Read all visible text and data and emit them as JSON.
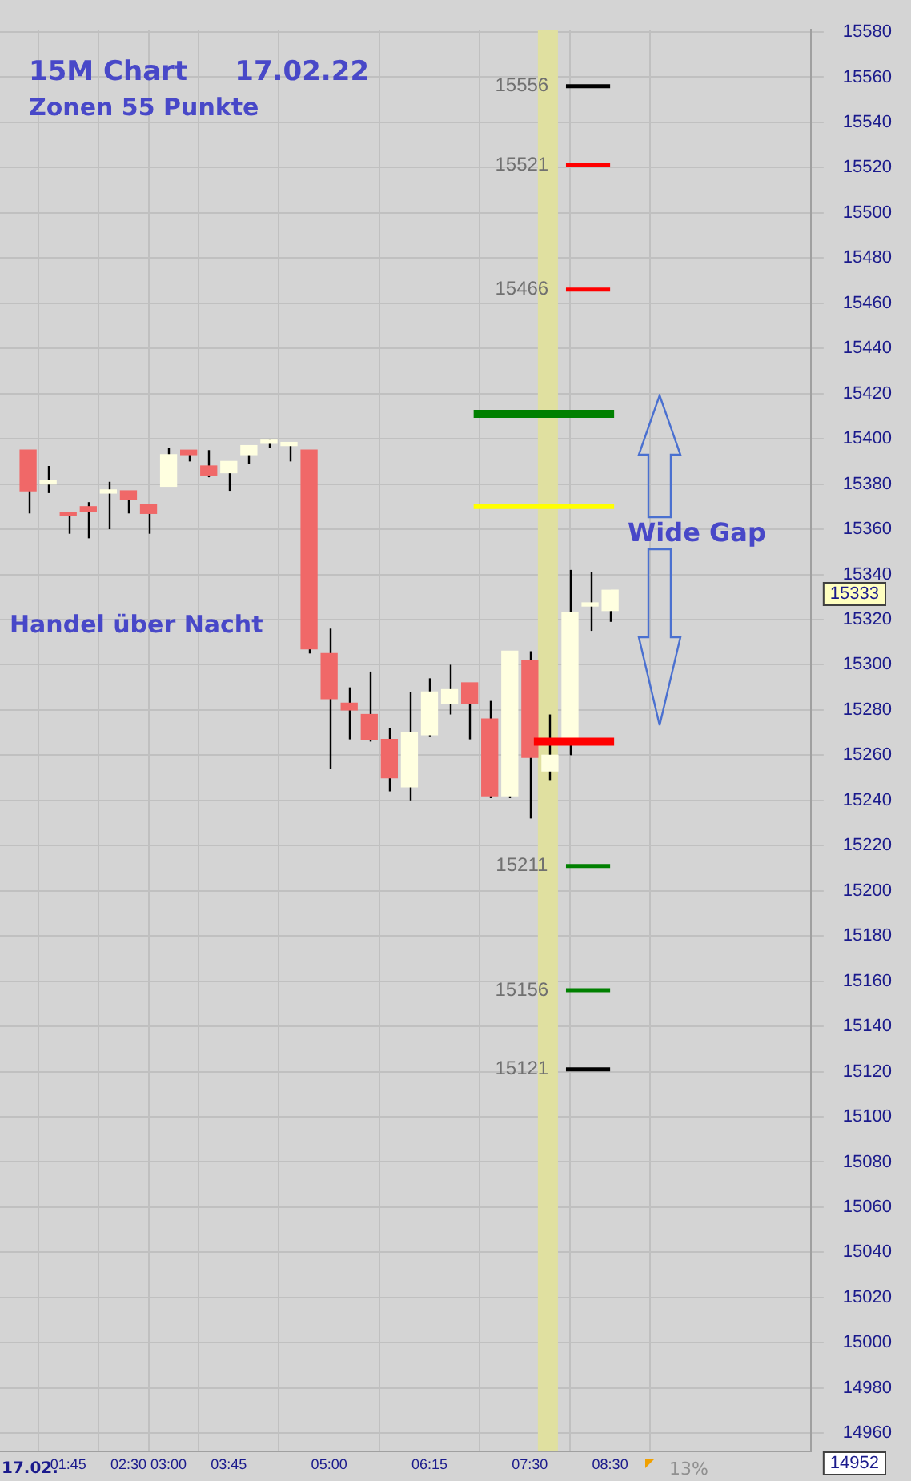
{
  "chart_data": {
    "type": "candlestick",
    "annotations": [
      "15M Chart     17.02.22",
      "Zonen 55 Punkte",
      "Handel über Nacht",
      "Wide Gap",
      "13%",
      "15333",
      "14952",
      "17.02."
    ],
    "x": [
      1.25,
      1.5,
      1.75,
      2,
      2.25,
      2.5,
      2.75,
      3,
      3.25,
      3.5,
      3.75,
      4,
      4.25,
      4.5,
      4.75,
      5,
      5.25,
      5.5,
      5.75,
      6,
      6.25,
      6.5,
      6.75,
      7,
      7.25,
      7.5,
      7.75,
      8,
      8.25,
      8.5
    ],
    "ohlc": [
      [
        15395,
        15395,
        15367,
        15377
      ],
      [
        15380,
        15388,
        15376,
        15380
      ],
      [
        15367,
        15367,
        15358,
        15366
      ],
      [
        15368,
        15372,
        15356,
        15370
      ],
      [
        15376,
        15381,
        15360,
        15376
      ],
      [
        15377,
        15377,
        15367,
        15373
      ],
      [
        15371,
        15371,
        15358,
        15367
      ],
      [
        15379,
        15396,
        15379,
        15393
      ],
      [
        15395,
        15395,
        15390,
        15393
      ],
      [
        15388,
        15395,
        15383,
        15384
      ],
      [
        15385,
        15390,
        15377,
        15390
      ],
      [
        15393,
        15397,
        15389,
        15397
      ],
      [
        15398,
        15400,
        15396,
        15398
      ],
      [
        15397,
        15397,
        15390,
        15397
      ],
      [
        15395,
        15395,
        15305,
        15307
      ],
      [
        15305,
        15316,
        15254,
        15285
      ],
      [
        15283,
        15290,
        15267,
        15280
      ],
      [
        15278,
        15297,
        15266,
        15267
      ],
      [
        15267,
        15272,
        15244,
        15250
      ],
      [
        15246,
        15288,
        15240,
        15270
      ],
      [
        15269,
        15294,
        15268,
        15288
      ],
      [
        15283,
        15300,
        15278,
        15289
      ],
      [
        15292,
        15292,
        15267,
        15283
      ],
      [
        15276,
        15284,
        15241,
        15242
      ],
      [
        15242,
        15306,
        15241,
        15306
      ],
      [
        15302,
        15306,
        15232,
        15259
      ],
      [
        15253,
        15278,
        15249,
        15260
      ],
      [
        15266,
        15342,
        15260,
        15323
      ],
      [
        15326,
        15341,
        15315,
        15326
      ],
      [
        15324,
        15333,
        15319,
        15333
      ]
    ],
    "colors": [
      "#f06868",
      "#ffffe0",
      "#f06868",
      "#f06868",
      "#ffffe0",
      "#f06868",
      "#f06868",
      "#ffffe0",
      "#f06868",
      "#f06868",
      "#ffffe0",
      "#ffffe0",
      "#ffffe0",
      "#ffffe0",
      "#f06868",
      "#f06868",
      "#f06868",
      "#f06868",
      "#f06868",
      "#ffffe0",
      "#ffffe0",
      "#ffffe0",
      "#f06868",
      "#f06868",
      "#ffffe0",
      "#f06868",
      "#ffffe0",
      "#ffffe0",
      "#ffffe0",
      "#ffffe0"
    ],
    "xlim": [
      0.9,
      11
    ],
    "xticks": [
      {
        "value": 1.75,
        "label": "01:45"
      },
      {
        "value": 2.5,
        "label": "02:30"
      },
      {
        "value": 3,
        "label": "03:00"
      },
      {
        "value": 3.75,
        "label": "03:45"
      },
      {
        "value": 5,
        "label": "05:00"
      },
      {
        "value": 6.25,
        "label": "06:15"
      },
      {
        "value": 7.5,
        "label": "07:30"
      },
      {
        "value": 8.5,
        "label": "08:30"
      }
    ],
    "ylim": [
      14952,
      15581
    ],
    "yticks": [
      14960,
      14980,
      15000,
      15020,
      15040,
      15060,
      15080,
      15100,
      15120,
      15140,
      15160,
      15180,
      15200,
      15220,
      15240,
      15260,
      15280,
      15300,
      15320,
      15340,
      15360,
      15380,
      15400,
      15420,
      15440,
      15460,
      15480,
      15500,
      15520,
      15540,
      15560,
      15580
    ],
    "grid": true,
    "ref_lines": [
      {
        "axis": "y",
        "value": 15556,
        "label": "15556",
        "color": "#000000"
      },
      {
        "axis": "y",
        "value": 15521,
        "label": "15521",
        "color": "#ff0000"
      },
      {
        "axis": "y",
        "value": 15466,
        "label": "15466",
        "color": "#ff0000"
      },
      {
        "axis": "y",
        "value": 15411,
        "color": "#008000"
      },
      {
        "axis": "y",
        "value": 15370,
        "color": "#ffff00"
      },
      {
        "axis": "y",
        "value": 15266,
        "color": "#ff0000"
      },
      {
        "axis": "y",
        "value": 15211,
        "label": "15211",
        "color": "#008000"
      },
      {
        "axis": "y",
        "value": 15156,
        "label": "15156",
        "color": "#008000"
      },
      {
        "axis": "y",
        "value": 15121,
        "label": "15121",
        "color": "#000000"
      }
    ],
    "bands": [
      {
        "axis": "x",
        "from": 7.6,
        "to": 7.85,
        "color": "#e0e0a0"
      }
    ]
  }
}
